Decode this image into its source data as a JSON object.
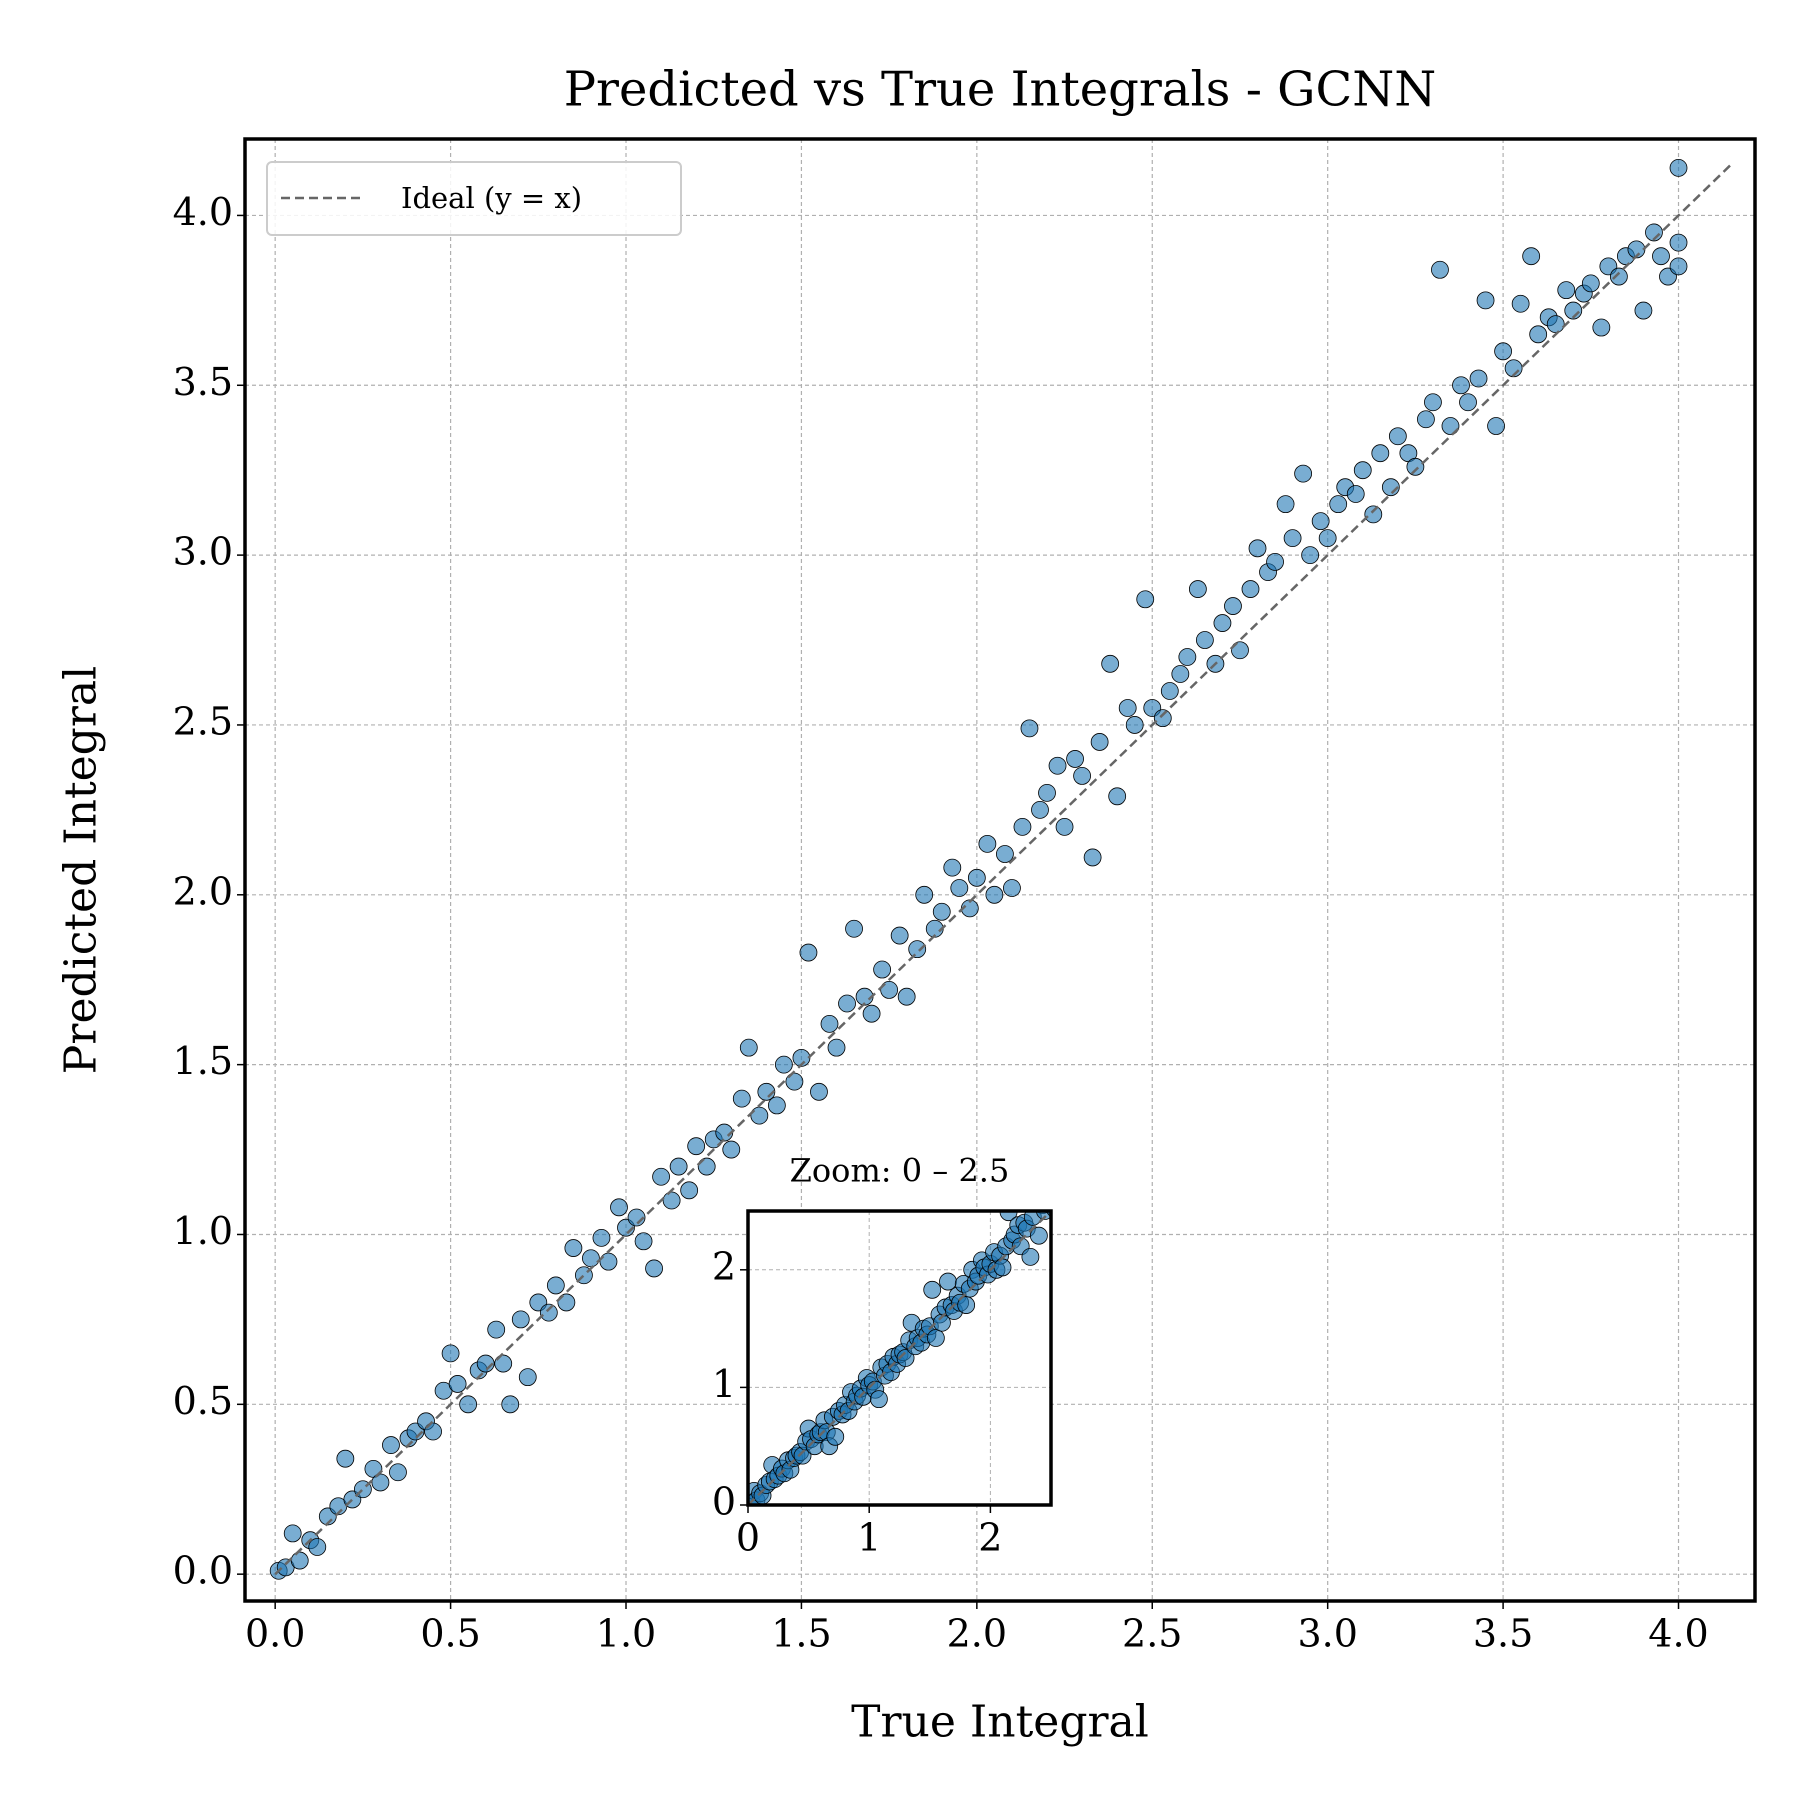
{
  "chart_data": {
    "type": "scatter",
    "title": "Predicted vs True Integrals - GCNN",
    "x_label": "True Integral",
    "y_label": "Predicted Integral",
    "color": "#1f77b4",
    "grid": true,
    "legend_position": "upper-left",
    "ideal": {
      "name": "Ideal (y = x)",
      "color": "#666666",
      "values": [
        0,
        4.15
      ]
    },
    "xlim": [
      -0.086,
      4.218
    ],
    "ylim": [
      -0.079,
      4.225
    ],
    "xticks": [
      {
        "value": 0,
        "label": "0.0"
      },
      0.5,
      {
        "value": 1,
        "label": "1.0"
      },
      1.5,
      {
        "value": 2,
        "label": "2.0"
      },
      2.5,
      {
        "value": 3,
        "label": "3.0"
      },
      3.5,
      {
        "value": 4,
        "label": "4.0"
      }
    ],
    "yticks": [
      {
        "value": 0,
        "label": "0.0"
      },
      0.5,
      {
        "value": 1,
        "label": "1.0"
      },
      1.5,
      {
        "value": 2,
        "label": "2.0"
      },
      2.5,
      {
        "value": 3,
        "label": "3.0"
      },
      3.5,
      {
        "value": 4,
        "label": "4.0"
      }
    ],
    "x": [
      0.01,
      0.03,
      0.05,
      0.07,
      0.1,
      0.12,
      0.15,
      0.18,
      0.2,
      0.22,
      0.25,
      0.28,
      0.3,
      0.33,
      0.35,
      0.38,
      0.4,
      0.43,
      0.45,
      0.48,
      0.5,
      0.52,
      0.55,
      0.58,
      0.6,
      0.63,
      0.65,
      0.67,
      0.7,
      0.72,
      0.75,
      0.78,
      0.8,
      0.83,
      0.85,
      0.88,
      0.9,
      0.93,
      0.95,
      0.98,
      1.0,
      1.03,
      1.05,
      1.08,
      1.1,
      1.13,
      1.15,
      1.18,
      1.2,
      1.23,
      1.25,
      1.28,
      1.3,
      1.33,
      1.35,
      1.38,
      1.4,
      1.43,
      1.45,
      1.48,
      1.5,
      1.52,
      1.55,
      1.58,
      1.6,
      1.63,
      1.65,
      1.68,
      1.7,
      1.73,
      1.75,
      1.78,
      1.8,
      1.83,
      1.85,
      1.88,
      1.9,
      1.93,
      1.95,
      1.98,
      2.0,
      2.03,
      2.05,
      2.08,
      2.1,
      2.13,
      2.15,
      2.18,
      2.2,
      2.23,
      2.25,
      2.28,
      2.3,
      2.33,
      2.35,
      2.38,
      2.4,
      2.43,
      2.45,
      2.48,
      2.5,
      2.53,
      2.55,
      2.58,
      2.6,
      2.63,
      2.65,
      2.68,
      2.7,
      2.73,
      2.75,
      2.78,
      2.8,
      2.83,
      2.85,
      2.88,
      2.9,
      2.93,
      2.95,
      2.98,
      3.0,
      3.03,
      3.05,
      3.08,
      3.1,
      3.13,
      3.15,
      3.18,
      3.2,
      3.23,
      3.25,
      3.28,
      3.3,
      3.32,
      3.35,
      3.38,
      3.4,
      3.43,
      3.45,
      3.48,
      3.5,
      3.53,
      3.55,
      3.58,
      3.6,
      3.63,
      3.65,
      3.68,
      3.7,
      3.73,
      3.75,
      3.78,
      3.8,
      3.83,
      3.85,
      3.88,
      3.9,
      3.93,
      3.95,
      3.97,
      4.0,
      4.0,
      4.0
    ],
    "y": [
      0.01,
      0.02,
      0.12,
      0.04,
      0.1,
      0.08,
      0.17,
      0.2,
      0.34,
      0.22,
      0.25,
      0.31,
      0.27,
      0.38,
      0.3,
      0.4,
      0.42,
      0.45,
      0.42,
      0.54,
      0.65,
      0.56,
      0.5,
      0.6,
      0.62,
      0.72,
      0.62,
      0.5,
      0.75,
      0.58,
      0.8,
      0.77,
      0.85,
      0.8,
      0.96,
      0.88,
      0.93,
      0.99,
      0.92,
      1.08,
      1.02,
      1.05,
      0.98,
      0.9,
      1.17,
      1.1,
      1.2,
      1.13,
      1.26,
      1.2,
      1.28,
      1.3,
      1.25,
      1.4,
      1.55,
      1.35,
      1.42,
      1.38,
      1.5,
      1.45,
      1.52,
      1.83,
      1.42,
      1.62,
      1.55,
      1.68,
      1.9,
      1.7,
      1.65,
      1.78,
      1.72,
      1.88,
      1.7,
      1.84,
      2.0,
      1.9,
      1.95,
      2.08,
      2.02,
      1.96,
      2.05,
      2.15,
      2.0,
      2.12,
      2.02,
      2.2,
      2.49,
      2.25,
      2.3,
      2.38,
      2.2,
      2.4,
      2.35,
      2.11,
      2.45,
      2.68,
      2.29,
      2.55,
      2.5,
      2.87,
      2.55,
      2.52,
      2.6,
      2.65,
      2.7,
      2.9,
      2.75,
      2.68,
      2.8,
      2.85,
      2.72,
      2.9,
      3.02,
      2.95,
      2.98,
      3.15,
      3.05,
      3.24,
      3.0,
      3.1,
      3.05,
      3.15,
      3.2,
      3.18,
      3.25,
      3.12,
      3.3,
      3.2,
      3.35,
      3.3,
      3.26,
      3.4,
      3.45,
      3.84,
      3.38,
      3.5,
      3.45,
      3.52,
      3.75,
      3.38,
      3.6,
      3.55,
      3.74,
      3.88,
      3.65,
      3.7,
      3.68,
      3.78,
      3.72,
      3.77,
      3.8,
      3.67,
      3.85,
      3.82,
      3.88,
      3.9,
      3.72,
      3.95,
      3.88,
      3.82,
      4.14,
      3.85,
      3.92
    ],
    "inset": {
      "title": "Zoom: 0 – 2.5",
      "xlim": [
        0,
        2.5
      ],
      "ylim": [
        0,
        2.5
      ],
      "xticks": [
        0,
        1,
        2
      ],
      "yticks": [
        0,
        1,
        2
      ]
    }
  }
}
